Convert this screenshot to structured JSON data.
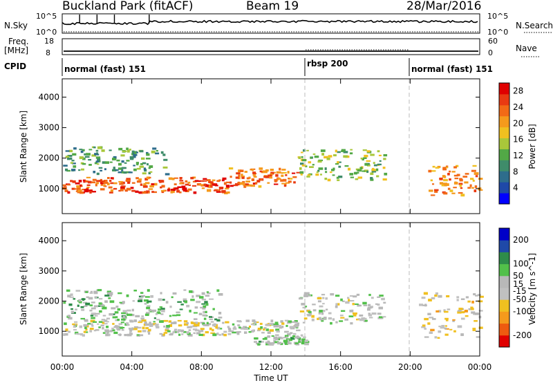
{
  "header": {
    "title": "Buckland Park (fitACF)",
    "beam": "Beam 19",
    "date": "28/Mar/2016"
  },
  "aux_panels": {
    "noise": {
      "left_label": "N.Sky",
      "right_label": "N.Search",
      "left_ticks": [
        "10^5",
        "10^0"
      ],
      "right_ticks": [
        "10^5",
        "10^0"
      ]
    },
    "freq": {
      "left_label_1": "Freq.",
      "left_label_2": "[MHz]",
      "right_label": "Nave",
      "left_ticks": [
        "18",
        "8"
      ],
      "right_ticks": [
        "60",
        "0"
      ]
    },
    "cpid": {
      "label": "CPID",
      "segments": [
        {
          "name": "normal (fast) 151",
          "start_hour": 0,
          "end_hour": 14
        },
        {
          "name": "rbsp 200",
          "start_hour": 14,
          "end_hour": 20
        },
        {
          "name": "normal (fast) 151",
          "start_hour": 20,
          "end_hour": 24
        }
      ]
    }
  },
  "x_axis": {
    "label": "Time UT",
    "ticks": [
      "00:00",
      "04:00",
      "08:00",
      "12:00",
      "16:00",
      "20:00",
      "00:00"
    ]
  },
  "colors": {
    "power_scale": [
      "#0000ff",
      "#1f49a8",
      "#2e6d8c",
      "#3f8c6a",
      "#52a846",
      "#a9c73a",
      "#f0c020",
      "#f59a1c",
      "#f26a16",
      "#e93a12",
      "#e00000"
    ],
    "velocity_scale": [
      "#e00000",
      "#ee5a10",
      "#f59a1c",
      "#f0c020",
      "#c0c0c0",
      "#b8b8b8",
      "#52c04a",
      "#2e8c4a",
      "#1f49a8",
      "#0000c8"
    ]
  },
  "chart_data": [
    {
      "type": "heatmap",
      "title": "",
      "xlabel": "Time UT",
      "ylabel": "Slant Range [km]",
      "xlim_hours": [
        0,
        24
      ],
      "ylim_km": [
        180,
        4600
      ],
      "y_ticks": [
        1000,
        2000,
        3000,
        4000
      ],
      "colorbar": {
        "label": "Power [dB]",
        "ticks": [
          4,
          8,
          12,
          16,
          20,
          24,
          28
        ],
        "range": [
          0,
          30
        ]
      },
      "features": [
        {
          "name": "strong band",
          "t_start": 0,
          "t_end": 9.5,
          "range_km": [
            900,
            1400
          ],
          "power_db": 26
        },
        {
          "name": "strong band",
          "t_start": 9.5,
          "t_end": 13.5,
          "range_km": [
            1100,
            1700
          ],
          "power_db": 24
        },
        {
          "name": "arc",
          "t_start": 13.5,
          "t_end": 18.5,
          "range_km": [
            1300,
            2300
          ],
          "power_db": 14
        },
        {
          "name": "late band",
          "t_start": 21,
          "t_end": 24,
          "range_km": [
            800,
            1800
          ],
          "power_db": 22
        },
        {
          "name": "upper scatter",
          "t_start": 0,
          "t_end": 6,
          "range_km": [
            1500,
            2400
          ],
          "power_db": 10
        }
      ]
    },
    {
      "type": "heatmap",
      "title": "",
      "xlabel": "Time UT",
      "ylabel": "Slant Range [km]",
      "xlim_hours": [
        0,
        24
      ],
      "ylim_km": [
        180,
        4600
      ],
      "y_ticks": [
        1000,
        2000,
        3000,
        4000
      ],
      "colorbar": {
        "label": "Velocity [m s^-1]",
        "ticks": [
          200,
          100,
          50,
          15,
          -15,
          -50,
          -100,
          -200
        ],
        "range": [
          -250,
          250
        ]
      },
      "features": [
        {
          "name": "ground scatter",
          "t_start": 0,
          "t_end": 13.5,
          "range_km": [
            900,
            1400
          ],
          "velocity": 0
        },
        {
          "name": "mixed scatter",
          "t_start": 0,
          "t_end": 9,
          "range_km": [
            1400,
            2400
          ],
          "velocity": 60
        },
        {
          "name": "arc",
          "t_start": 13.5,
          "t_end": 18.5,
          "range_km": [
            1300,
            2300
          ],
          "velocity": 5
        },
        {
          "name": "green patch",
          "t_start": 11,
          "t_end": 14,
          "range_km": [
            600,
            900
          ],
          "velocity": 40
        },
        {
          "name": "late mixed",
          "t_start": 20.5,
          "t_end": 24,
          "range_km": [
            800,
            2300
          ],
          "velocity": -40
        }
      ]
    }
  ],
  "y_axis_label": "Slant Range [km]",
  "axis_label": "Time UT"
}
